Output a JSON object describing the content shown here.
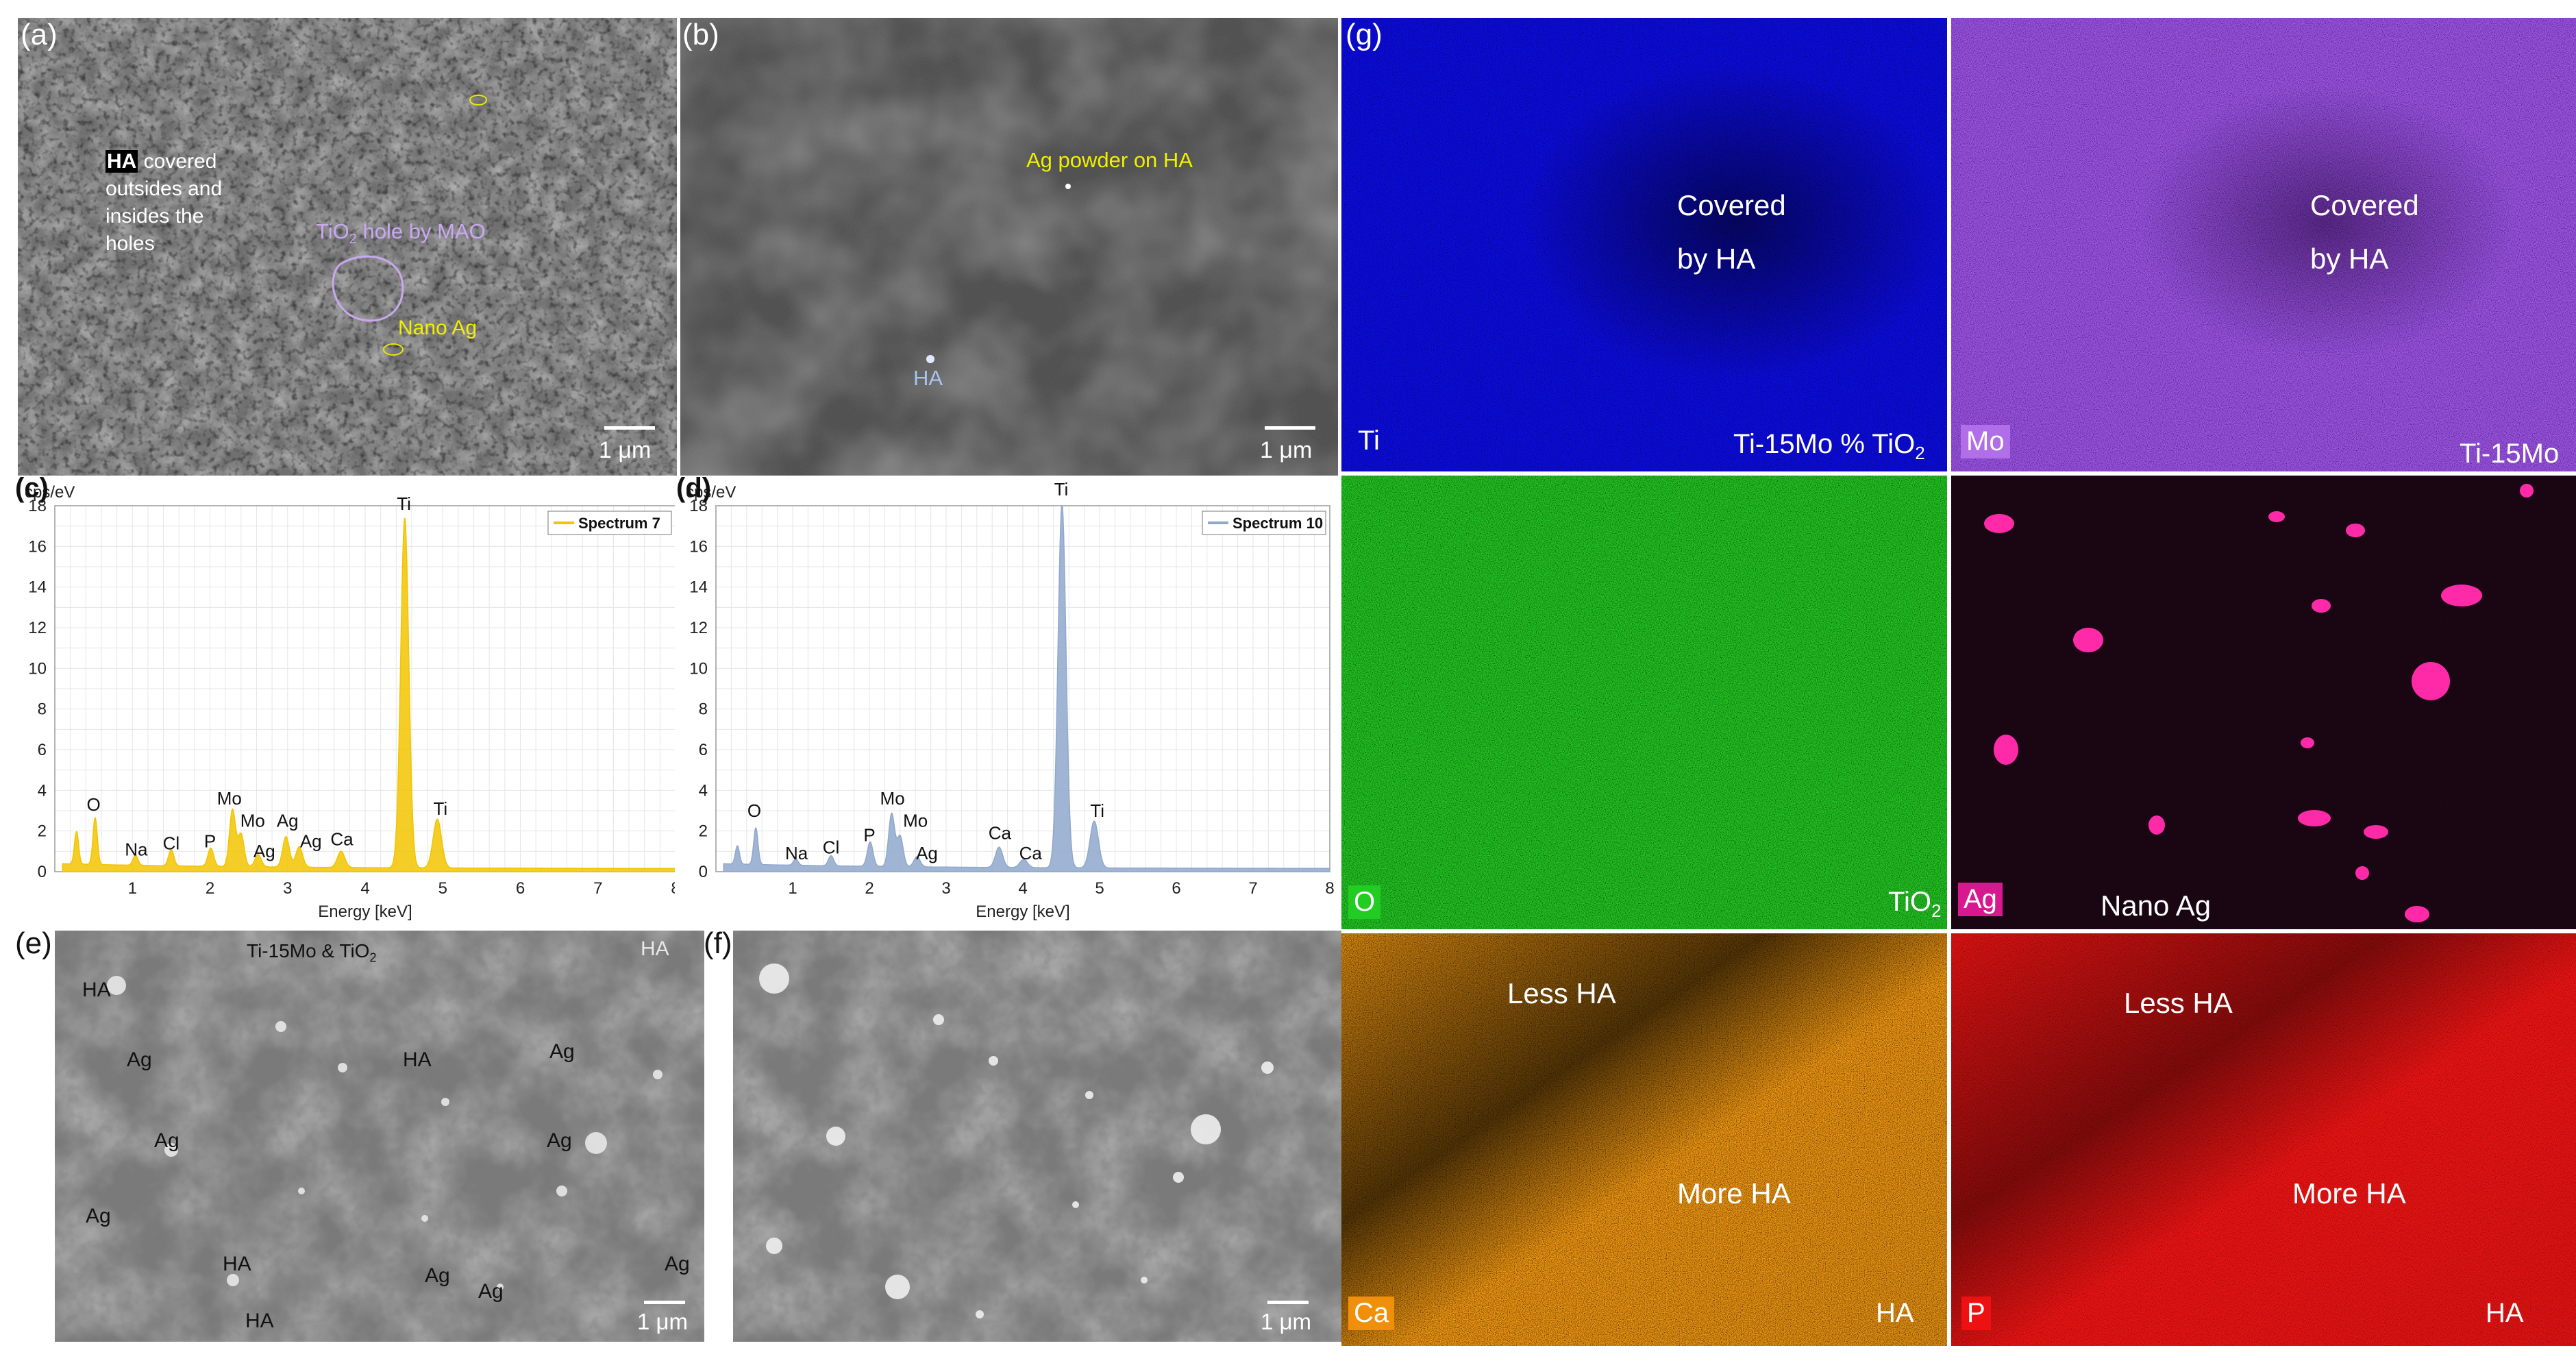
{
  "panels": {
    "a": {
      "label": "(a)",
      "ha_bold": "HA",
      "ha_text_1": " covered",
      "ha_text_2": "outsides and",
      "ha_text_3": "insides the",
      "ha_text_4": "holes",
      "tio2_hole": "TiO",
      "tio2_hole_sub": "2",
      "tio2_hole_rest": " hole by MAO",
      "nano_ag": "Nano Ag",
      "scale": "1 μm"
    },
    "b": {
      "label": "(b)",
      "ag_powder": "Ag powder on HA",
      "ha": "HA",
      "scale": "1 μm"
    },
    "e": {
      "label": "(e)",
      "top_text": "Ti-15Mo & TiO",
      "top_sub": "2",
      "ha_tr": "HA",
      "labels": [
        {
          "t": "HA"
        },
        {
          "t": "Ag"
        },
        {
          "t": "HA"
        },
        {
          "t": "Ag"
        },
        {
          "t": "Ag"
        },
        {
          "t": "Ag"
        },
        {
          "t": "Ag"
        },
        {
          "t": "HA"
        },
        {
          "t": "Ag"
        },
        {
          "t": "Ag"
        },
        {
          "t": "HA"
        },
        {
          "t": "Ag"
        }
      ],
      "scale": "1 μm"
    },
    "f": {
      "label": "(f)",
      "scale": "1 μm"
    },
    "g": {
      "label": "(g)",
      "maps": [
        {
          "element": "Ti",
          "color": "#0b0bd6",
          "badge": "",
          "note1": "Covered",
          "note2": "by HA",
          "corner": "Ti-15Mo % TiO",
          "corner_sub": "2"
        },
        {
          "element": "Mo",
          "color": "#9b59e6",
          "badge": "#b06ee8",
          "note1": "Covered",
          "note2": "by HA",
          "corner": "Ti-15Mo",
          "corner_sub": ""
        },
        {
          "element": "O",
          "color": "#22cc22",
          "badge": "#22cc22",
          "note1": "",
          "note2": "",
          "corner": "TiO",
          "corner_sub": "2"
        },
        {
          "element": "Ag",
          "color": "#e020a0",
          "badge": "#d8188f",
          "note1": "Nano Ag",
          "note2": "",
          "corner": "",
          "corner_sub": ""
        },
        {
          "element": "Ca",
          "color": "#f0900a",
          "badge": "#f0900a",
          "note1": "Less HA",
          "note2": "More HA",
          "corner": "HA",
          "corner_sub": ""
        },
        {
          "element": "P",
          "color": "#e01010",
          "badge": "#ee1111",
          "note1": "Less HA",
          "note2": "More HA",
          "corner": "HA",
          "corner_sub": ""
        }
      ]
    }
  },
  "chart_data": [
    {
      "type": "line",
      "panel": "(c)",
      "ylabel": "cps/eV",
      "xlabel": "Energy [keV]",
      "xlim": [
        0,
        8
      ],
      "ylim": [
        0,
        18
      ],
      "xticks": [
        1,
        2,
        3,
        4,
        5,
        6,
        7,
        8
      ],
      "yticks": [
        0,
        2,
        4,
        6,
        8,
        10,
        12,
        14,
        16,
        18
      ],
      "legend": "Spectrum 7",
      "color": "#f2c400",
      "peaks": [
        {
          "e": 0.28,
          "h": 1.6
        },
        {
          "e": 0.52,
          "h": 2.3
        },
        {
          "e": 1.04,
          "h": 0.5
        },
        {
          "e": 1.5,
          "h": 0.8
        },
        {
          "e": 2.01,
          "h": 0.9
        },
        {
          "e": 2.29,
          "h": 2.8
        },
        {
          "e": 2.4,
          "h": 1.6
        },
        {
          "e": 2.62,
          "h": 0.6
        },
        {
          "e": 2.98,
          "h": 1.5
        },
        {
          "e": 3.15,
          "h": 1.0
        },
        {
          "e": 3.69,
          "h": 0.8
        },
        {
          "e": 4.51,
          "h": 17.2
        },
        {
          "e": 4.93,
          "h": 2.4
        }
      ],
      "annotations": [
        {
          "t": "O",
          "e": 0.5,
          "y": 3.0
        },
        {
          "t": "Na",
          "e": 1.05,
          "y": 0.8
        },
        {
          "t": "Cl",
          "e": 1.5,
          "y": 1.1
        },
        {
          "t": "P",
          "e": 2.0,
          "y": 1.2
        },
        {
          "t": "Mo",
          "e": 2.25,
          "y": 3.3
        },
        {
          "t": "Mo",
          "e": 2.55,
          "y": 2.2
        },
        {
          "t": "Ag",
          "e": 2.7,
          "y": 0.7
        },
        {
          "t": "Ag",
          "e": 3.0,
          "y": 2.2
        },
        {
          "t": "Ag",
          "e": 3.3,
          "y": 1.2
        },
        {
          "t": "Ca",
          "e": 3.7,
          "y": 1.3
        },
        {
          "t": "Ti",
          "e": 4.5,
          "y": 17.8
        },
        {
          "t": "Ti",
          "e": 4.97,
          "y": 2.8
        }
      ]
    },
    {
      "type": "line",
      "panel": "(d)",
      "ylabel": "cps/eV",
      "xlabel": "Energy [keV]",
      "xlim": [
        0,
        8
      ],
      "ylim": [
        0,
        18
      ],
      "xticks": [
        1,
        2,
        3,
        4,
        5,
        6,
        7,
        8
      ],
      "yticks": [
        0,
        2,
        4,
        6,
        8,
        10,
        12,
        14,
        16,
        18
      ],
      "legend": "Spectrum 10",
      "color": "#8fa8cc",
      "peaks": [
        {
          "e": 0.28,
          "h": 0.9
        },
        {
          "e": 0.52,
          "h": 1.8
        },
        {
          "e": 1.04,
          "h": 0.3
        },
        {
          "e": 1.5,
          "h": 0.5
        },
        {
          "e": 2.01,
          "h": 1.2
        },
        {
          "e": 2.29,
          "h": 2.6
        },
        {
          "e": 2.4,
          "h": 1.5
        },
        {
          "e": 2.62,
          "h": 0.5
        },
        {
          "e": 3.69,
          "h": 1.0
        },
        {
          "e": 4.01,
          "h": 0.4
        },
        {
          "e": 4.51,
          "h": 17.9
        },
        {
          "e": 4.93,
          "h": 2.3
        }
      ],
      "annotations": [
        {
          "t": "O",
          "e": 0.5,
          "y": 2.7
        },
        {
          "t": "Na",
          "e": 1.05,
          "y": 0.6
        },
        {
          "t": "Cl",
          "e": 1.5,
          "y": 0.9
        },
        {
          "t": "P",
          "e": 2.0,
          "y": 1.5
        },
        {
          "t": "Mo",
          "e": 2.3,
          "y": 3.3
        },
        {
          "t": "Mo",
          "e": 2.6,
          "y": 2.2
        },
        {
          "t": "Ag",
          "e": 2.75,
          "y": 0.6
        },
        {
          "t": "Ca",
          "e": 3.7,
          "y": 1.6
        },
        {
          "t": "Ca",
          "e": 4.1,
          "y": 0.6
        },
        {
          "t": "Ti",
          "e": 4.5,
          "y": 18.5
        },
        {
          "t": "Ti",
          "e": 4.97,
          "y": 2.7
        }
      ]
    }
  ]
}
